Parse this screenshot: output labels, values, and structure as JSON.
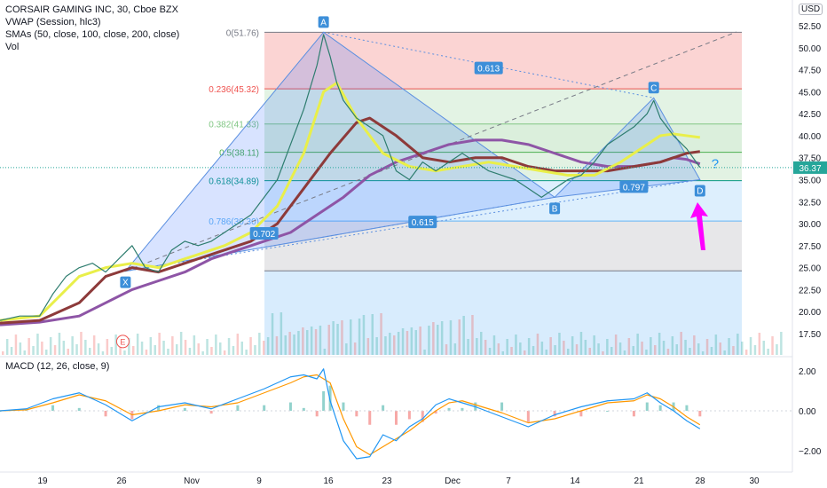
{
  "legend": {
    "title": "CORSAIR GAMING INC, 30, Cboe BZX",
    "vwap": "VWAP (Session, hlc3)",
    "smas": "SMAs (50, close, 100, close, 200, close)",
    "vol": "Vol"
  },
  "macd_label": "MACD (12, 26, close, 9)",
  "currency": "USD",
  "last_price_label": "36.37",
  "colors": {
    "price_up": "#26a69a",
    "price_down": "#ef5350",
    "sma50": "#e9ef4a",
    "sma100": "#8d3a3a",
    "sma200": "#8e55a6",
    "pattern_fill": "#2962ff",
    "badge": "#3d8fd9",
    "arrow": "#ff00ff",
    "macd_line": "#2196f3",
    "signal_line": "#ff9800"
  },
  "chart_data": {
    "type": "line",
    "y_ticks": [
      "52.50",
      "50.00",
      "47.50",
      "45.00",
      "42.50",
      "40.00",
      "37.50",
      "35.00",
      "32.50",
      "30.00",
      "27.50",
      "25.00",
      "22.50",
      "20.00",
      "17.50"
    ],
    "x_ticks": [
      "19",
      "26",
      "Nov",
      "9",
      "16",
      "23",
      "Dec",
      "7",
      "14",
      "21",
      "28",
      "30"
    ],
    "ylim": [
      16,
      54
    ],
    "macd_ticks": [
      "2.00",
      "0.00",
      "−2.00"
    ],
    "fib_levels": [
      {
        "label": "0(51.76)",
        "value": 51.76,
        "color": "#787b86"
      },
      {
        "label": "0.236(45.32)",
        "value": 45.32,
        "color": "#ef5350"
      },
      {
        "label": "0.382(41.33)",
        "value": 41.33,
        "color": "#81c784"
      },
      {
        "label": "0.5(38.11)",
        "value": 38.11,
        "color": "#4caf50"
      },
      {
        "label": "0.618(34.89)",
        "value": 34.89,
        "color": "#089981"
      },
      {
        "label": "0.786(30.30)",
        "value": 30.3,
        "color": "#64b5f6"
      },
      {
        "label": "",
        "value": 24.64,
        "color": "#787b86"
      }
    ],
    "pattern_points": [
      {
        "label": "X",
        "t": 9.5,
        "value": 24.6
      },
      {
        "label": "A",
        "t": 24.5,
        "value": 51.76
      },
      {
        "label": "B",
        "t": 42,
        "value": 33.0
      },
      {
        "label": "C",
        "t": 49.5,
        "value": 44.3
      },
      {
        "label": "D",
        "t": 53,
        "value": 35.0
      },
      {
        "label": "E",
        "t": 9.3,
        "value": 16.6
      }
    ],
    "ratios": [
      {
        "label": "0.613",
        "t": 37,
        "value": 47.7
      },
      {
        "label": "0.702",
        "t": 20,
        "value": 28.9
      },
      {
        "label": "0.615",
        "t": 32,
        "value": 30.2
      },
      {
        "label": "0.797",
        "t": 48,
        "value": 34.2
      }
    ],
    "question_mark": "?",
    "price": {
      "t": [
        0,
        1.5,
        3,
        4,
        5,
        6,
        7,
        8,
        9,
        10,
        11,
        12,
        13,
        14,
        15,
        16,
        17,
        18,
        19,
        20,
        21,
        22,
        23,
        24,
        24.5,
        25,
        25.5,
        26,
        27,
        28,
        29,
        30,
        31,
        32,
        33,
        34,
        35,
        36,
        37,
        38,
        39,
        40,
        41,
        42,
        43,
        44,
        45,
        46,
        47,
        48,
        49,
        49.5,
        50,
        50.5,
        51,
        52,
        53
      ],
      "value": [
        19,
        19.5,
        19.5,
        22,
        24,
        25,
        25.5,
        24.5,
        26,
        27.5,
        25,
        24.5,
        27,
        28,
        27.5,
        28,
        29,
        30,
        31,
        33,
        35,
        39,
        43,
        48,
        51.5,
        49,
        46,
        44,
        42,
        41,
        40,
        36,
        35,
        37,
        36,
        37,
        38,
        37,
        36,
        35.5,
        35,
        34,
        33,
        34,
        35,
        35.5,
        37,
        39,
        40,
        41,
        42.5,
        44,
        42,
        41,
        40,
        38.5,
        36.4
      ]
    },
    "sma50": {
      "t": [
        0,
        3,
        6,
        8,
        10,
        12,
        14,
        15,
        17,
        19,
        21,
        23,
        24.5,
        25.5,
        27,
        29,
        31,
        33,
        35,
        37,
        39,
        41,
        43,
        45,
        47,
        49,
        50,
        51,
        52,
        53
      ],
      "value": [
        19,
        19.5,
        24,
        25,
        25.5,
        25,
        26,
        26.5,
        27.5,
        29,
        32,
        38,
        45,
        46,
        42,
        38,
        36.5,
        36,
        36.5,
        37,
        36.5,
        36,
        35.5,
        35.5,
        37,
        39,
        40,
        40.2,
        40,
        39.8
      ]
    },
    "sma100": {
      "t": [
        0,
        3,
        6,
        8,
        10,
        12,
        14,
        15,
        17,
        19,
        21,
        23,
        25,
        27,
        28,
        30,
        32,
        34,
        36,
        38,
        40,
        42,
        44,
        46,
        48,
        50,
        51,
        52,
        53
      ],
      "value": [
        18.7,
        19,
        21,
        24,
        25,
        24.5,
        25.5,
        26,
        27,
        28,
        30,
        34,
        38,
        41.5,
        42,
        40,
        37.5,
        37,
        37.5,
        37.5,
        36.5,
        36,
        36,
        36,
        36.5,
        37,
        37.5,
        38,
        38.2
      ]
    },
    "sma200": {
      "t": [
        0,
        3,
        6,
        8,
        10,
        12,
        14,
        16,
        18,
        20,
        22,
        24,
        26,
        28,
        30,
        32,
        34,
        36,
        38,
        40,
        42,
        44,
        46,
        48,
        50,
        51,
        52,
        53
      ],
      "value": [
        18.5,
        18.8,
        19.5,
        21,
        22.5,
        23.5,
        24.5,
        26,
        27,
        28,
        29,
        31,
        33,
        35.5,
        37,
        38,
        39,
        39.5,
        39.5,
        39,
        38,
        37,
        36.5,
        36.5,
        37,
        37.5,
        37.3,
        36.8
      ]
    },
    "macd": {
      "t": [
        0,
        2,
        4,
        6,
        8,
        10,
        12,
        14,
        16,
        18,
        20,
        22,
        23,
        24,
        24.5,
        25,
        26,
        27,
        28,
        29,
        30,
        31,
        32,
        33,
        34,
        35,
        36,
        38,
        40,
        42,
        44,
        46,
        48,
        49,
        50,
        51,
        52,
        53
      ],
      "value": [
        0,
        0.1,
        0.6,
        0.9,
        0.3,
        -0.5,
        0.2,
        0.4,
        0.1,
        0.6,
        1.1,
        1.7,
        1.8,
        1.6,
        2.1,
        0.5,
        -1.5,
        -2.4,
        -2.3,
        -1.2,
        -1.5,
        -0.8,
        -0.4,
        0.3,
        0.6,
        0.4,
        0.2,
        -0.3,
        -0.8,
        -0.2,
        0.2,
        0.5,
        0.6,
        0.9,
        0.4,
        0.0,
        -0.5,
        -0.9
      ]
    },
    "signal": {
      "t": [
        0,
        2,
        4,
        6,
        8,
        10,
        12,
        14,
        16,
        18,
        20,
        22,
        23,
        24,
        25,
        26,
        27,
        28,
        29,
        30,
        31,
        32,
        33,
        34,
        35,
        36,
        38,
        40,
        42,
        44,
        46,
        48,
        49,
        50,
        51,
        52,
        53
      ],
      "value": [
        0,
        0.05,
        0.4,
        0.8,
        0.5,
        -0.2,
        0.0,
        0.3,
        0.2,
        0.4,
        0.9,
        1.4,
        1.7,
        1.8,
        1.4,
        -0.4,
        -1.8,
        -2.2,
        -1.8,
        -1.4,
        -1.0,
        -0.5,
        0.0,
        0.4,
        0.5,
        0.3,
        -0.1,
        -0.6,
        -0.4,
        0.0,
        0.4,
        0.5,
        0.8,
        0.6,
        0.2,
        -0.3,
        -0.7
      ]
    }
  }
}
